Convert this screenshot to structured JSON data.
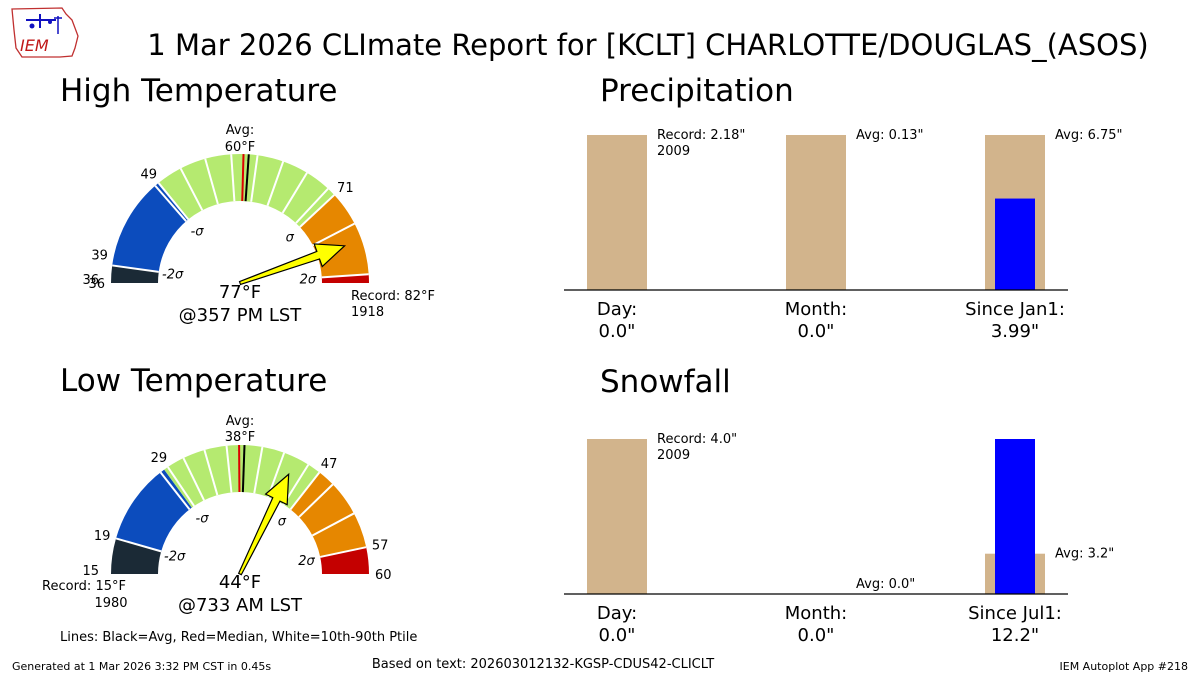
{
  "title": "1 Mar 2026 CLImate Report for [KCLT] CHARLOTTE/DOUGLAS_(ASOS)",
  "logo_text": "IEM",
  "colors": {
    "bin_dark": "#1b2a36",
    "bin_blue": "#0c4cbd",
    "bin_green": "#b5ea70",
    "bin_orange": "#e68700",
    "bin_red": "#c40000",
    "needle": "#ffff00",
    "bar_tan": "#d2b48c",
    "bar_blue": "#0000ff"
  },
  "sigma_labels": {
    "minus2": "-2σ",
    "minus1": "-σ",
    "plus1": "σ",
    "plus2": "2σ"
  },
  "gauges": [
    {
      "id": "high",
      "title": "High Temperature",
      "min": 36,
      "max": 82,
      "value": 77,
      "value_label": "77°F",
      "time_label": "@357 PM LST",
      "avg": 60,
      "median": 59.4,
      "avg_label": "Avg:",
      "avg_value_label": "60°F",
      "record_label": "Record: 82°F",
      "record_year": "1918",
      "record_side": "right",
      "ticks": [
        36,
        39,
        49,
        71
      ],
      "sigma": {
        "minus2": 38,
        "minus1": 49,
        "plus1": 71,
        "plus2": 81
      },
      "bins": [
        {
          "from": 36,
          "to": 38,
          "color": "bin_dark"
        },
        {
          "from": 38,
          "to": 49,
          "color": "bin_blue"
        },
        {
          "from": 49,
          "to": 71,
          "color": "bin_green"
        },
        {
          "from": 71,
          "to": 81,
          "color": "bin_orange"
        },
        {
          "from": 81,
          "to": 82,
          "color": "bin_red"
        }
      ],
      "white_lines": [
        48.5,
        52,
        55,
        58,
        61,
        64,
        67,
        70,
        75
      ]
    },
    {
      "id": "low",
      "title": "Low Temperature",
      "min": 15,
      "max": 60,
      "value": 44,
      "value_label": "44°F",
      "time_label": "@733 AM LST",
      "avg": 38,
      "median": 37.4,
      "avg_label": "Avg:",
      "avg_value_label": "38°F",
      "record_label": "Record: 15°F",
      "record_year": "1980",
      "record_side": "left",
      "ticks": [
        19,
        29,
        47,
        57,
        60
      ],
      "sigma": {
        "minus2": 19,
        "minus1": 29,
        "plus1": 47,
        "plus2": 57
      },
      "bins": [
        {
          "from": 15,
          "to": 19,
          "color": "bin_dark"
        },
        {
          "from": 19,
          "to": 28.5,
          "color": "bin_blue"
        },
        {
          "from": 28.5,
          "to": 47,
          "color": "bin_green"
        },
        {
          "from": 47,
          "to": 57,
          "color": "bin_orange"
        },
        {
          "from": 57,
          "to": 60,
          "color": "bin_red"
        }
      ],
      "white_lines": [
        28,
        31,
        33.5,
        36,
        40,
        42.5,
        45.5,
        49,
        53
      ]
    }
  ],
  "chart_data": [
    {
      "type": "bar",
      "title": "Precipitation",
      "categories": [
        "Day:",
        "Month:",
        "Since Jan1:"
      ],
      "observed": [
        0.0,
        0.0,
        3.99
      ],
      "observed_labels": [
        "0.0\"",
        "0.0\"",
        "3.99\""
      ],
      "normalized_observed": [
        0,
        0,
        0.59
      ],
      "normalized_reference": [
        1,
        1,
        1
      ],
      "reference_labels": [
        "Record: 2.18\"",
        "Avg: 0.13\"",
        "Avg: 6.75\""
      ],
      "reference_sublabels": [
        "2009",
        "",
        ""
      ]
    },
    {
      "type": "bar",
      "title": "Snowfall",
      "categories": [
        "Day:",
        "Month:",
        "Since Jul1:"
      ],
      "observed": [
        0.0,
        0.0,
        12.2
      ],
      "observed_labels": [
        "0.0\"",
        "0.0\"",
        "12.2\""
      ],
      "normalized_observed": [
        0,
        0,
        1
      ],
      "normalized_reference": [
        1,
        0,
        0.26
      ],
      "reference_labels": [
        "Record: 4.0\"",
        "Avg: 0.0\"",
        "Avg: 3.2\""
      ],
      "reference_sublabels": [
        "2009",
        "",
        ""
      ]
    }
  ],
  "footer": {
    "legend": "Lines: Black=Avg, Red=Median, White=10th-90th Ptile",
    "generated": "Generated at 1 Mar 2026 3:32 PM CST in 0.45s",
    "based_on": "Based on text: 202603012132-KGSP-CDUS42-CLICLT",
    "app": "IEM Autoplot App #218"
  }
}
